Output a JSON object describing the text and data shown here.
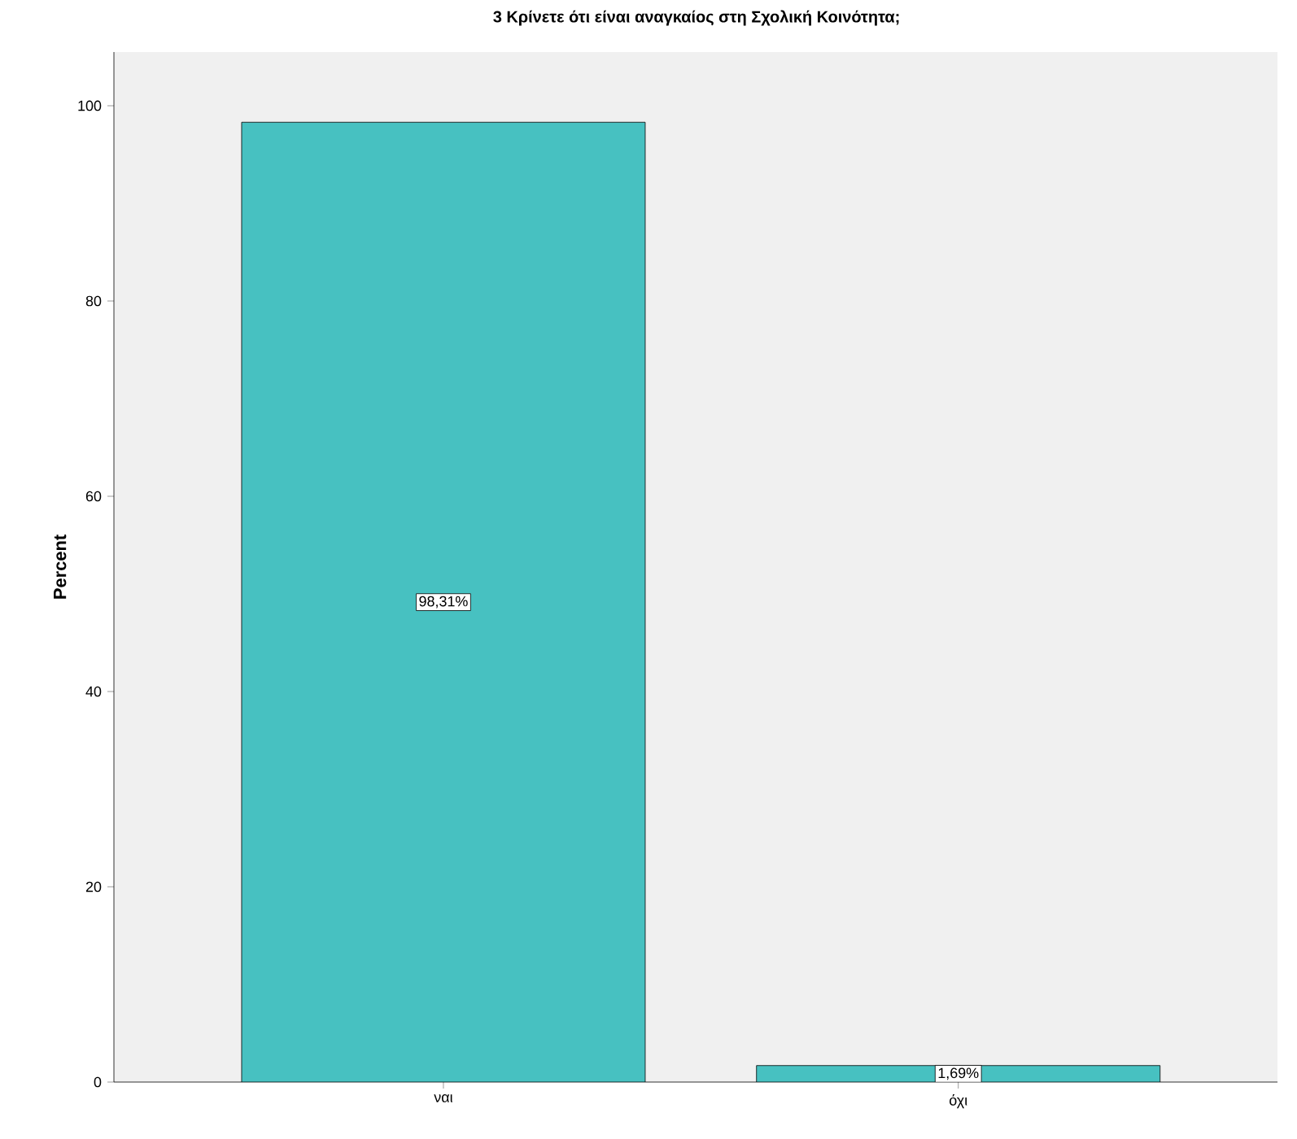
{
  "chart_data": {
    "type": "bar",
    "title": "3 Κρίνετε ότι είναι αναγκαίος στη Σχολική Κοινότητα;",
    "ylabel": "Percent",
    "categories": [
      "ναι",
      "όχι"
    ],
    "values": [
      98.31,
      1.69
    ],
    "value_labels": [
      "98,31%",
      "1,69%"
    ],
    "color": "#47c1c1",
    "ylim": [
      0,
      105.5
    ],
    "yticks": [
      0,
      20,
      40,
      60,
      80,
      100
    ]
  }
}
